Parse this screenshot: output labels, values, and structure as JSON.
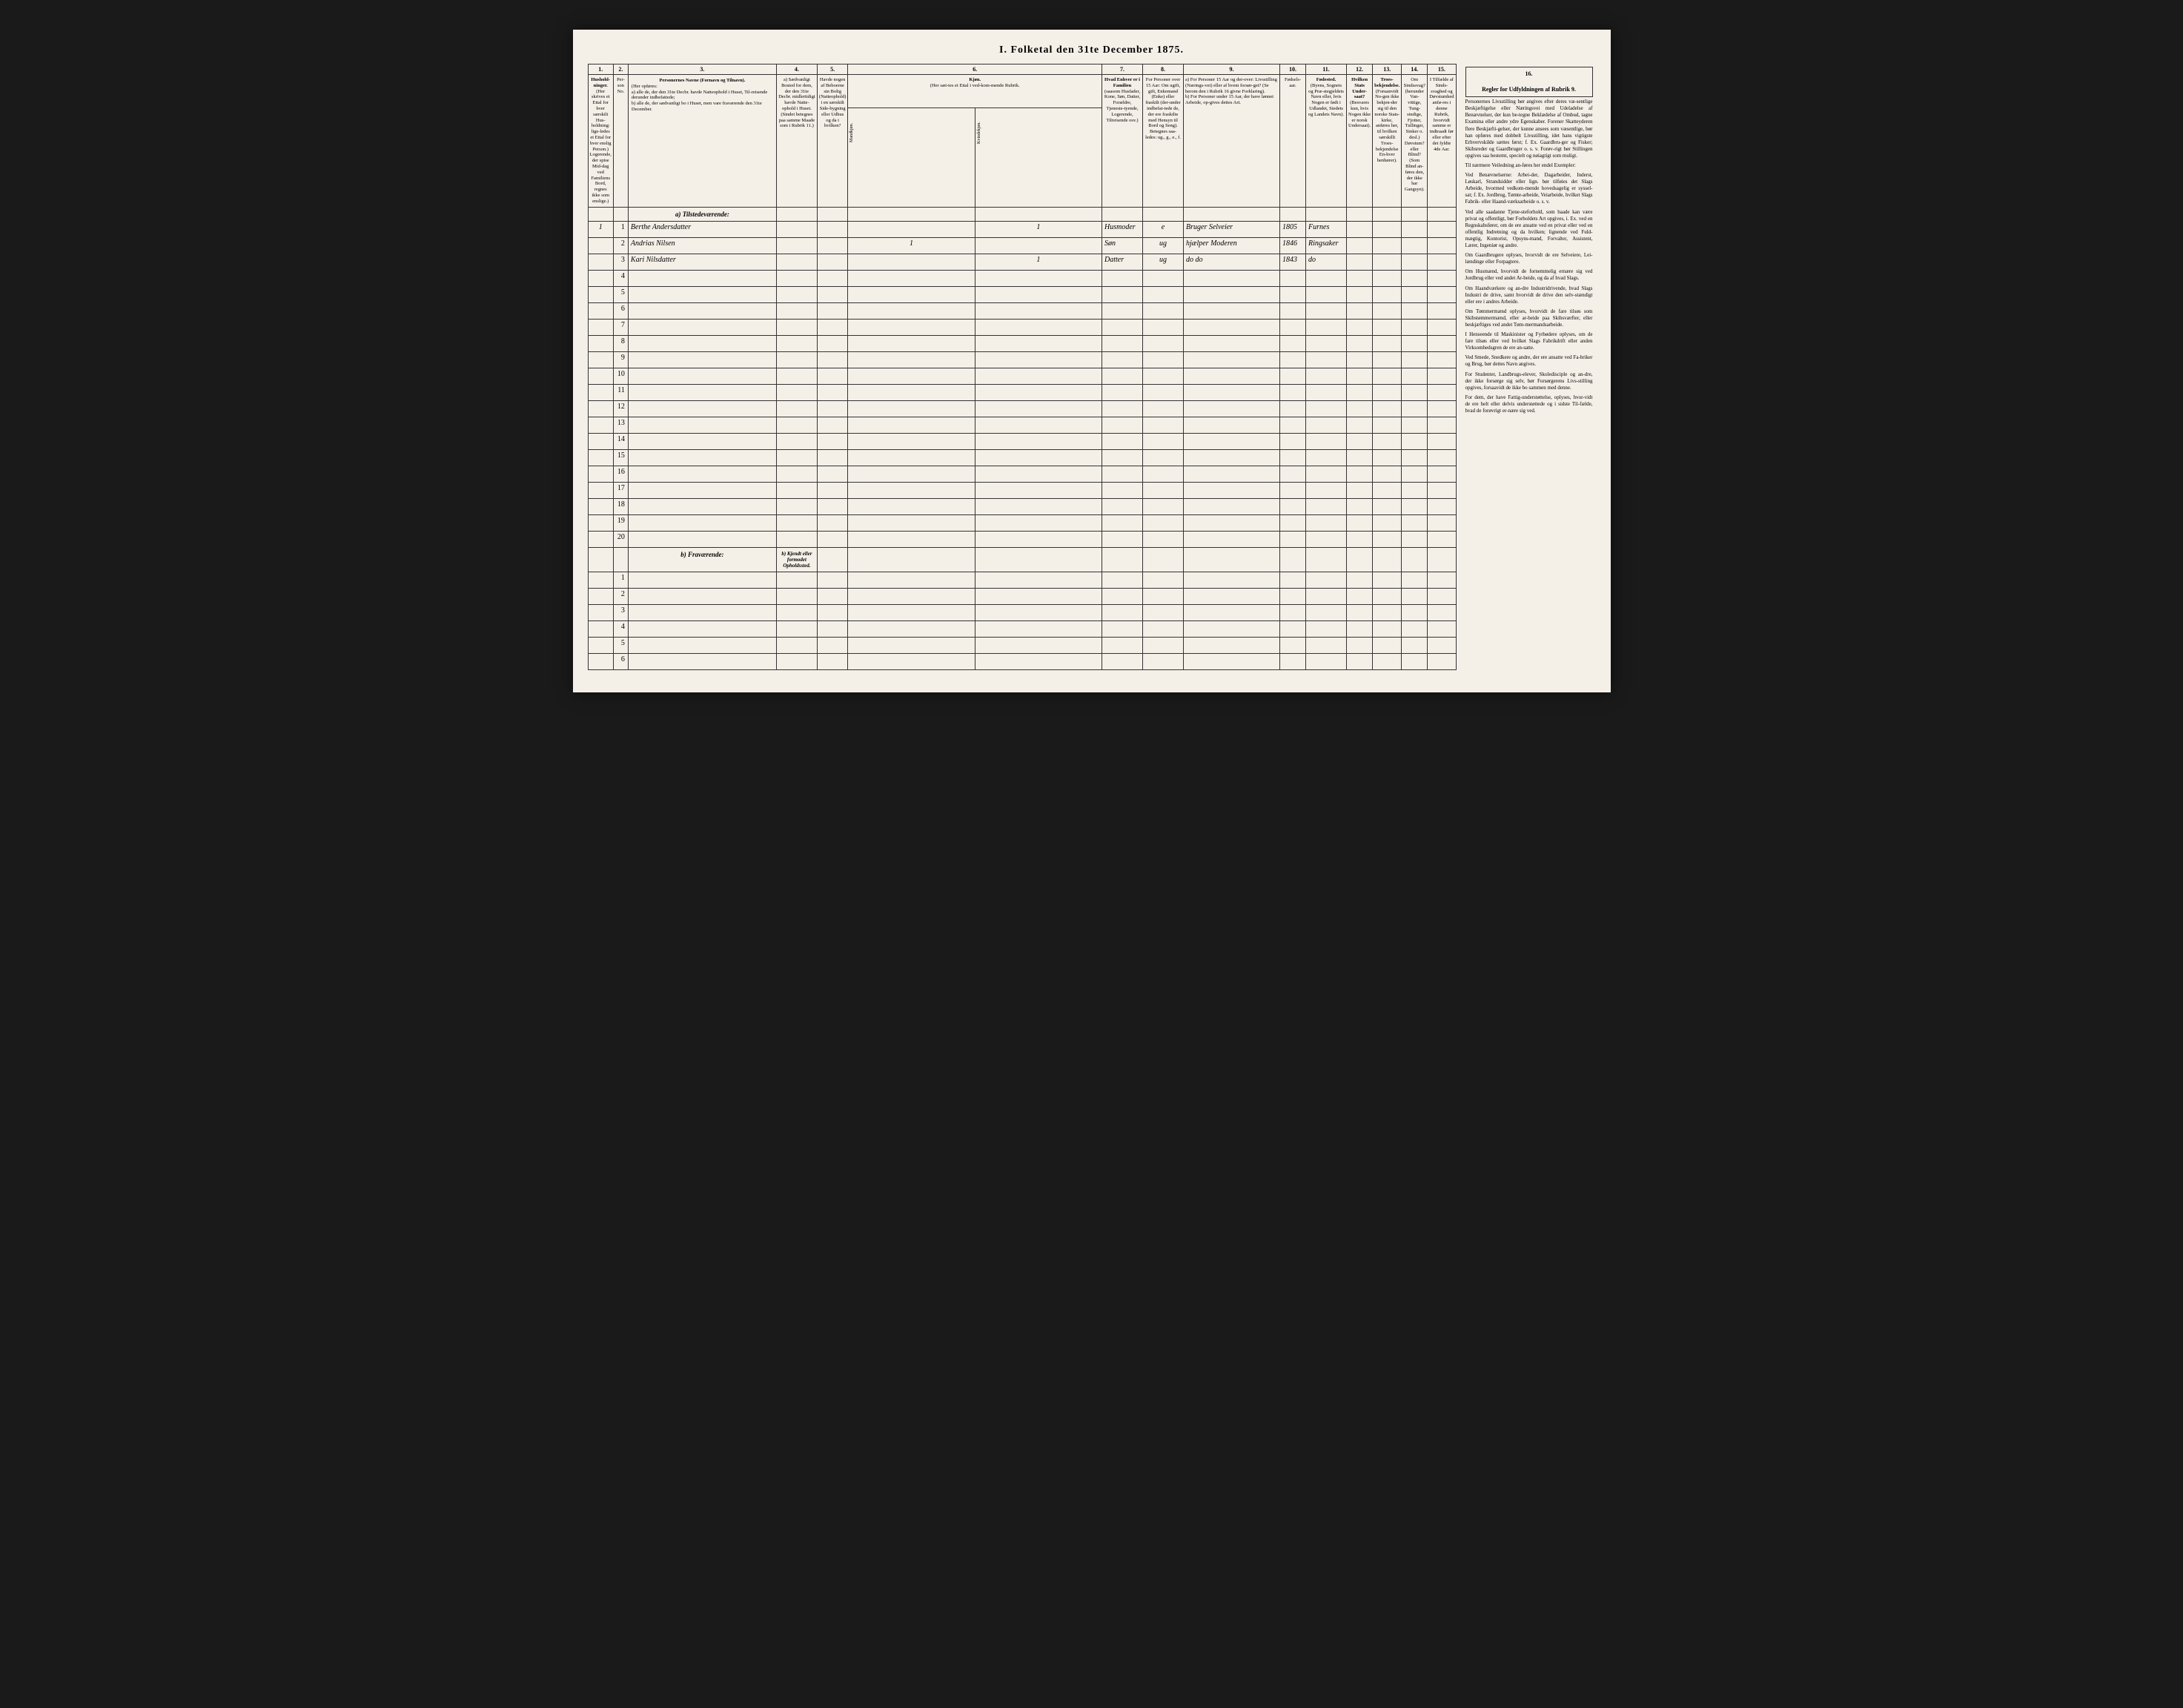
{
  "title": "I. Folketal den 31te December 1875.",
  "column_numbers": [
    "1.",
    "2.",
    "3.",
    "4.",
    "5.",
    "6.",
    "7.",
    "8.",
    "9.",
    "10.",
    "11.",
    "12.",
    "13.",
    "14.",
    "15.",
    "16."
  ],
  "headers": {
    "col1": "Hushold-ninger.",
    "col1_sub": "(Her skrives et Ettal for hver særskilt Hus-holdning: lige-ledes et Ettal for hver enslig Person.)",
    "col1_note": "Logerende, der spise Mid-dag ved Familiens Bord, regnes ikke som enslige.)",
    "col2": "Per-son No.",
    "col3": "Personernes Navne (Fornavn og Tilnavn).",
    "col3_sub": "(Her opføres:",
    "col3_a": "a) alle de, der den 31te Decbr. havde Natteophold i Huset, Til-reisende derunder indbefattede;",
    "col3_b": "b) alle de, der sædvanligt bo i Huset, men vare fraværende den 31te December.",
    "col4": "a) Sædvanligt Bosted for dem, der den 31te Decbr. midlertidigt havde Natte-ophold i Huset. (Sindet betegnes paa samme Maade som i Rubrik 11.)",
    "col5": "Havde nogen af Beboerne sin Bolig (Natteophold) i en særskilt Side-bygning eller Udhus og da i hvilken?",
    "col6": "Kjøn.",
    "col6_sub": "(Her sæt-tes et Ettal i ved-kom-mende Rubrik.",
    "col6_m": "Mandkjøn.",
    "col6_k": "Kvindekjøn.",
    "col7": "Hvad Enhver er i Familien",
    "col7_sub": "(saasom Husfader, Kone, Søn, Datter, Forældre, Tjeneste-tyende, Logerende, Tilreisende osv.)",
    "col8": "For Personer over 15 Aar: Om ugift, gift, Enkemand (Enke) eller fraskilt (der-under indbefat-tede de, der ere fraskilte med Hensyn til Bord og Seng). Betegnes saa-ledes: ug., g., e., f.",
    "col9_a": "a) For Personer 15 Aar og der-over: Livsstilling (Nærings-vei) eller af hvem forsør-get? (Se herom den i Rubrik 16 givne Forklaring).",
    "col9_b": "b) For Personer under 15 Aar, der have lønnet Arbeide, op-gives dettes Art.",
    "col10": "Fødsels-aar.",
    "col11": "Fødested.",
    "col11_sub": "(Byens, Sognets og Præ-stegjeldets Navn eller, hvis Nogen er født i Udlandet, Stedets og Landets Navn).",
    "col12": "Hvilken Stats Under-saat?",
    "col12_sub": "(Besvares kun, hvis Nogen ikke er norsk Undersaat).",
    "col13": "Troes-bekjendelse.",
    "col13_sub": "(Foruanvidt No-gen ikke bekjen-der sig til den norske Stats-kirke, anføres her, til hvilken særskillt Troes-bekjendelse En-hver henhører).",
    "col14": "Om Sindssvag? (herunder Van-vittige, Tung-sindige, Fjotter, Tullinger, Sinker o. desl.) Døvstum? eller Blind? (Som Blind an-føres den, der ikke har Gangsyn).",
    "col15": "I Tilfælde af Sinds-svaghed og Døvstumhed anfø-res i denne Rubrik, hvorvidt samme er indtraadt før eller efter det fyldte 4de Aar.",
    "col16": "Regler for Udfyldningen af Rubrik 9."
  },
  "sections": {
    "present": "a) Tilstedeværende:",
    "absent": "b) Fraværende:",
    "absent_col4": "b) Kjendt eller formodet Opholdssted."
  },
  "rows": [
    {
      "n": "1",
      "hh": "1",
      "name": "Berthe Andersdatter",
      "k": "1",
      "fam": "Husmoder",
      "status": "e",
      "occ": "Bruger Selveier",
      "year": "1805",
      "place": "Furnes"
    },
    {
      "n": "2",
      "hh": "",
      "name": "Andrias Nilsen",
      "m": "1",
      "fam": "Søn",
      "status": "ug",
      "occ": "hjælper Moderen",
      "year": "1846",
      "place": "Ringsaker"
    },
    {
      "n": "3",
      "hh": "",
      "name": "Kari Nilsdatter",
      "k": "1",
      "fam": "Datter",
      "status": "ug",
      "occ": "do   do",
      "year": "1843",
      "place": "do"
    }
  ],
  "empty_present": [
    "4",
    "5",
    "6",
    "7",
    "8",
    "9",
    "10",
    "11",
    "12",
    "13",
    "14",
    "15",
    "16",
    "17",
    "18",
    "19",
    "20"
  ],
  "empty_absent": [
    "1",
    "2",
    "3",
    "4",
    "5",
    "6"
  ],
  "instructions_title": "Regler for Udfyldningen af Rubrik 9.",
  "instructions_paragraphs": [
    "Personernes Livsstilling bør angives efter deres væ-sentlige Beskjæftigelse eller Næringsvei med Udeladelse af Benævnelser, der kun be-tegne Beklædelse af Ombud, tagne Examina eller andre ydre Egenskaber. Forener Skatteyderen flere Beskjæfti-gelser, der kunne ansees som væsentlige, bør han opføres med dobbelt Livsstilling, idet hans vigtigste Erhvervskilde sættes først; f. Ex. Gaardbru-ger og Fisker; Skibsreder og Gaardbruger o. s. v. Forøv-rigt bør Stillingen opgives saa bestemt, specielt og nøiagtigt som muligt.",
    "Til nærmere Veiledning an-føres her endel Exempler:",
    "Ved Benævnelserne: Arbei-der, Dagarbeider, Inderst, Løskarl, Strandsidder eller lign. bør tilføies det Slags Arbeide, hvormed vedkom-mende hovedsagelig er syssel-sat; f. Ex. Jordbrug, Tømte-arbeide, Veiarbeide, hvilket Slags Fabrik- eller Haand-værksarbeide o. s. v.",
    "Ved alle saadanne Tjene-steforhold, som baade kan være privat og offentligt, bør Forholdets Art opgives, i. Ex. ved en Regnskabsfører, om de ere ansatte ved en privat eller ved en offentlig Indretning og da hvilken; lignende ved Fuld-mægtig, Kontorist, Opsyns-mand, Forvalter, Assistent, Lærer, Ingeniør og andre.",
    "Om Gaardbrugere oplyses, hvorvidt de ere Selveiere, Lei-lændinge eller Forpagtere.",
    "Om Husmænd, hvorvidt de fornemmelig ernære sig ved Jordbrug eller ved andet Ar-beide, og da af hvad Slags.",
    "Om Haandværkere og an-dre Industridrivende, hvad Slags Industri de drive, samt hvorvidt de drive den selv-stændigt eller ere i andres Arbeide.",
    "Om Tømmermænd oplyses, hvorvidt de fare tilsøs som Skibstømmermænd, eller ar-beide paa Skibsværfter, eller beskjæftiges ved andet Tøm-mermandsarbeide.",
    "I Henseende til Maskinister og Fyrbødere oplyses, om de fare tilsøs eller ved hvilket Slags Fabrikdrift eller anden Virksomhedsgren de ere an-satte.",
    "Ved Smede, Snedkere og andre, der ere ansatte ved Fa-briker og Brug, bør dettes Navn angives.",
    "For Studenter, Landbrugs-elever, Skoledisciple og an-dre, der ikke forsørge sig selv, bør Forsørgerens Livs-stilling opgives, forsaavidt de ikke bo sammen med denne.",
    "For dem, der have Fattig-understøttelse, oplyses, hvor-vidt de ere helt eller delvis understøttede og i sidste Til-fælde, hvad de forøvrigt er-nære sig ved."
  ]
}
